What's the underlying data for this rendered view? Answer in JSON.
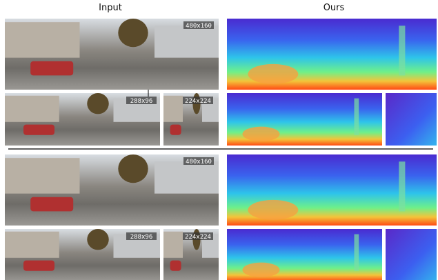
{
  "headers": {
    "input": "Input",
    "ours": "Ours"
  },
  "groups": [
    {
      "labels": {
        "large": "480x160",
        "medium": "288x96",
        "small": "224x224"
      }
    },
    {
      "labels": {
        "large": "480x160",
        "medium": "288x96",
        "small": "224x224"
      }
    }
  ]
}
